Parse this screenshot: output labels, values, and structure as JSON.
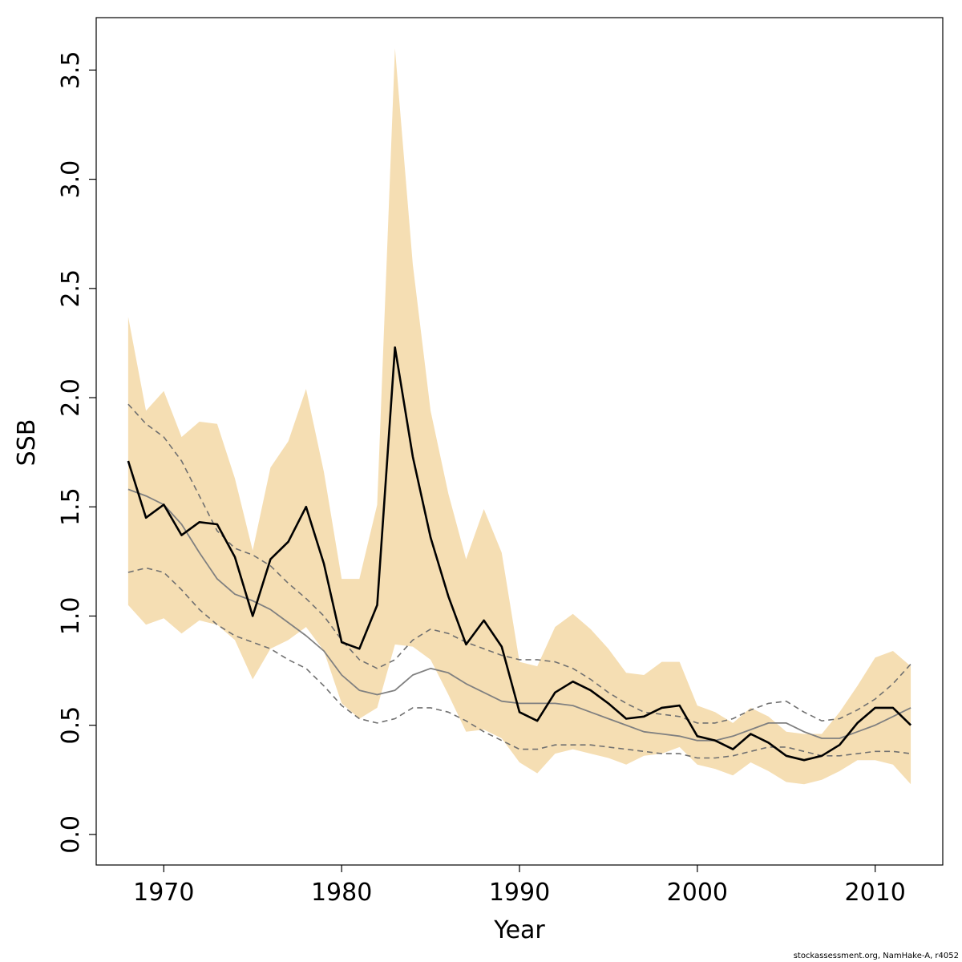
{
  "chart_data": {
    "type": "line",
    "xlabel": "Year",
    "ylabel": "SSB",
    "xlim": [
      1966.2,
      2013.8
    ],
    "ylim": [
      -0.14,
      3.74
    ],
    "x_ticks": [
      1970,
      1980,
      1990,
      2000,
      2010
    ],
    "y_ticks": [
      0.0,
      0.5,
      1.0,
      1.5,
      2.0,
      2.5,
      3.0,
      3.5
    ],
    "x_tick_labels": [
      "1970",
      "1980",
      "1990",
      "2000",
      "2010"
    ],
    "y_tick_labels": [
      "0.0",
      "0.5",
      "1.0",
      "1.5",
      "2.0",
      "2.5",
      "3.0",
      "3.5"
    ],
    "grid": false,
    "colors": {
      "band": "#f5deb3",
      "estimate": "#000000",
      "median": "#808080",
      "quantiles": "#707070",
      "frame": "#000000"
    },
    "x": [
      1968,
      1969,
      1970,
      1971,
      1972,
      1973,
      1974,
      1975,
      1976,
      1977,
      1978,
      1979,
      1980,
      1981,
      1982,
      1983,
      1984,
      1985,
      1986,
      1987,
      1988,
      1989,
      1990,
      1991,
      1992,
      1993,
      1994,
      1995,
      1996,
      1997,
      1998,
      1999,
      2000,
      2001,
      2002,
      2003,
      2004,
      2005,
      2006,
      2007,
      2008,
      2009,
      2010,
      2011,
      2012
    ],
    "band_upper": [
      2.37,
      1.94,
      2.03,
      1.82,
      1.89,
      1.88,
      1.63,
      1.3,
      1.68,
      1.8,
      2.04,
      1.66,
      1.17,
      1.17,
      1.51,
      3.6,
      2.61,
      1.94,
      1.56,
      1.26,
      1.49,
      1.29,
      0.79,
      0.77,
      0.95,
      1.01,
      0.94,
      0.85,
      0.74,
      0.73,
      0.79,
      0.79,
      0.59,
      0.56,
      0.51,
      0.58,
      0.54,
      0.47,
      0.46,
      0.46,
      0.56,
      0.68,
      0.81,
      0.84,
      0.77
    ],
    "band_lower": [
      1.05,
      0.96,
      0.99,
      0.92,
      0.98,
      0.96,
      0.89,
      0.71,
      0.85,
      0.89,
      0.95,
      0.84,
      0.6,
      0.53,
      0.58,
      0.87,
      0.86,
      0.8,
      0.64,
      0.47,
      0.48,
      0.44,
      0.33,
      0.28,
      0.37,
      0.39,
      0.37,
      0.35,
      0.32,
      0.36,
      0.37,
      0.4,
      0.32,
      0.3,
      0.27,
      0.33,
      0.29,
      0.24,
      0.23,
      0.25,
      0.29,
      0.34,
      0.34,
      0.32,
      0.23
    ],
    "series": [
      {
        "values": [
          1.71,
          1.45,
          1.51,
          1.37,
          1.43,
          1.42,
          1.27,
          1.0,
          1.26,
          1.34,
          1.5,
          1.24,
          0.88,
          0.85,
          1.05,
          2.23,
          1.73,
          1.36,
          1.09,
          0.87,
          0.98,
          0.86,
          0.56,
          0.52,
          0.65,
          0.7,
          0.66,
          0.6,
          0.53,
          0.54,
          0.58,
          0.59,
          0.45,
          0.43,
          0.39,
          0.46,
          0.42,
          0.36,
          0.34,
          0.36,
          0.41,
          0.51,
          0.58,
          0.58,
          0.5
        ]
      },
      {
        "values": [
          1.58,
          1.55,
          1.51,
          1.42,
          1.29,
          1.17,
          1.1,
          1.07,
          1.03,
          0.97,
          0.91,
          0.84,
          0.73,
          0.66,
          0.64,
          0.66,
          0.73,
          0.76,
          0.74,
          0.69,
          0.65,
          0.61,
          0.6,
          0.6,
          0.6,
          0.59,
          0.56,
          0.53,
          0.5,
          0.47,
          0.46,
          0.45,
          0.43,
          0.43,
          0.45,
          0.48,
          0.51,
          0.51,
          0.47,
          0.44,
          0.44,
          0.47,
          0.5,
          0.54,
          0.58
        ]
      },
      {
        "values": [
          1.97,
          1.88,
          1.82,
          1.71,
          1.55,
          1.39,
          1.31,
          1.28,
          1.23,
          1.15,
          1.08,
          1.0,
          0.89,
          0.8,
          0.76,
          0.8,
          0.89,
          0.94,
          0.92,
          0.88,
          0.85,
          0.82,
          0.8,
          0.8,
          0.79,
          0.76,
          0.71,
          0.65,
          0.6,
          0.56,
          0.55,
          0.54,
          0.51,
          0.51,
          0.53,
          0.57,
          0.6,
          0.61,
          0.56,
          0.52,
          0.53,
          0.57,
          0.62,
          0.69,
          0.78
        ]
      },
      {
        "values": [
          1.2,
          1.22,
          1.2,
          1.12,
          1.03,
          0.96,
          0.91,
          0.88,
          0.85,
          0.8,
          0.76,
          0.68,
          0.59,
          0.53,
          0.51,
          0.53,
          0.58,
          0.58,
          0.56,
          0.52,
          0.47,
          0.43,
          0.39,
          0.39,
          0.41,
          0.41,
          0.41,
          0.4,
          0.39,
          0.38,
          0.37,
          0.37,
          0.35,
          0.35,
          0.36,
          0.38,
          0.4,
          0.4,
          0.38,
          0.36,
          0.36,
          0.37,
          0.38,
          0.38,
          0.37
        ]
      }
    ]
  },
  "credit": "stockassessment.org, NamHake-A, r4052"
}
